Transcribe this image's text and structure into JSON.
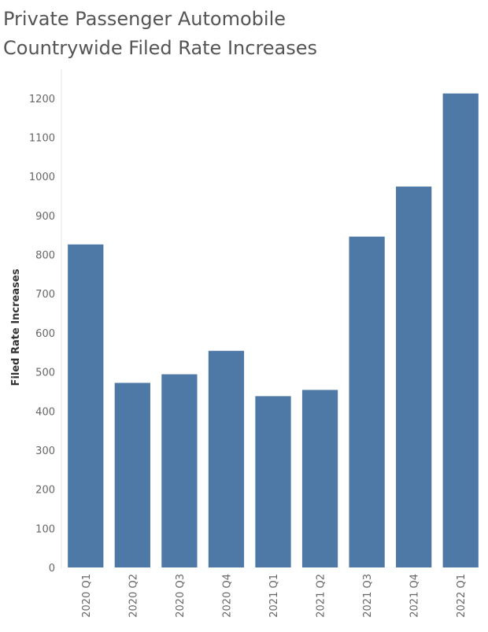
{
  "chart_data": {
    "type": "bar",
    "title_lines": [
      "Private Passenger Automobile",
      "Countrywide Filed Rate Increases"
    ],
    "xlabel": "",
    "ylabel": "Filed Rate Increases",
    "categories": [
      "2020 Q1",
      "2020 Q2",
      "2020 Q3",
      "2020 Q4",
      "2021 Q1",
      "2021 Q2",
      "2021 Q3",
      "2021 Q4",
      "2022 Q1"
    ],
    "values": [
      826,
      472,
      494,
      554,
      438,
      454,
      846,
      974,
      1212
    ],
    "ylim": [
      0,
      1280
    ],
    "yticks": [
      0,
      100,
      200,
      300,
      400,
      500,
      600,
      700,
      800,
      900,
      1000,
      1100,
      1200
    ],
    "grid": false,
    "bar_color": "#4e79a7"
  }
}
